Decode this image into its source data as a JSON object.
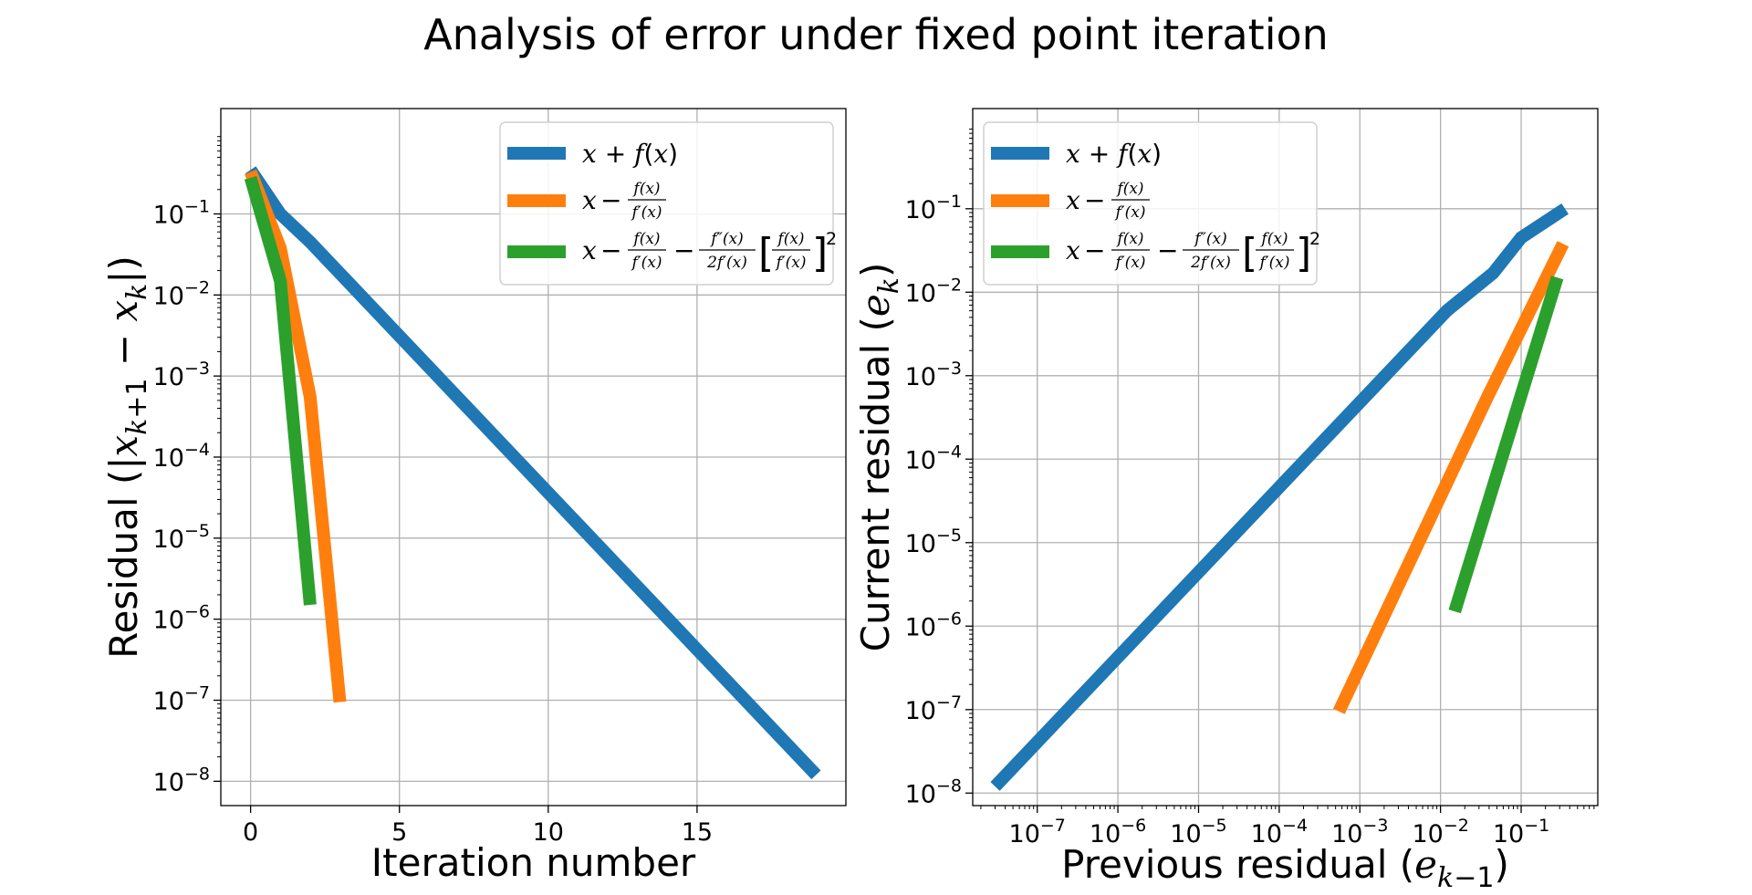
{
  "figure": {
    "title": "Analysis of error under fixed point iteration"
  },
  "colors": {
    "blue": "#1f77b4",
    "orange": "#ff7f0e",
    "green": "#2ca02c",
    "grid": "#b0b0b0"
  },
  "legend_labels": {
    "fx": "x + f(x)",
    "newton": "x − f(x)/f′(x)",
    "halley": "x − f(x)/f′(x) − f″(x)/(2f′(x)) [f(x)/f′(x)]^2"
  },
  "chart_data": [
    {
      "type": "line",
      "xlabel": "Iteration number",
      "ylabel": "Residual (|x_{k+1} − x_k|)",
      "xlim": [
        -1,
        20
      ],
      "ylog": true,
      "ylim_exp": [
        -8.3,
        0.3
      ],
      "grid": true,
      "legend_position": "top-right",
      "xticks": [
        0,
        5,
        10,
        15
      ],
      "yticks_exp": [
        -8,
        -7,
        -6,
        -5,
        -4,
        -3,
        -2,
        -1
      ],
      "series": [
        {
          "key": "fx",
          "color": "#1f77b4",
          "x": [
            0,
            1,
            2,
            19
          ],
          "y": [
            0.35,
            0.1,
            0.045,
            1.2e-08
          ]
        },
        {
          "key": "newton",
          "color": "#ff7f0e",
          "x": [
            0,
            1,
            2,
            3
          ],
          "y": [
            0.33,
            0.038,
            0.00055,
            9.5e-08
          ]
        },
        {
          "key": "halley",
          "color": "#2ca02c",
          "x": [
            0,
            1,
            2
          ],
          "y": [
            0.28,
            0.015,
            1.5e-06
          ]
        }
      ]
    },
    {
      "type": "line",
      "xlabel": "Previous residual (e_{k−1})",
      "ylabel": "Current residual (e_k)",
      "xlog": true,
      "ylog": true,
      "xlim_exp": [
        -7.8,
        -0.05
      ],
      "ylim_exp": [
        -8.15,
        0.2
      ],
      "grid": true,
      "legend_position": "top-left",
      "xticks_exp": [
        -7,
        -6,
        -5,
        -4,
        -3,
        -2,
        -1
      ],
      "yticks_exp": [
        -8,
        -7,
        -6,
        -5,
        -4,
        -3,
        -2,
        -1
      ],
      "series": [
        {
          "key": "fx",
          "color": "#1f77b4",
          "x": [
            3e-08,
            0.012,
            0.045,
            0.1,
            0.35
          ],
          "y": [
            1.2e-08,
            0.006,
            0.017,
            0.045,
            0.1
          ]
        },
        {
          "key": "newton",
          "color": "#ff7f0e",
          "x": [
            0.00055,
            0.038,
            0.33
          ],
          "y": [
            9.5e-08,
            0.00055,
            0.038
          ]
        },
        {
          "key": "halley",
          "color": "#2ca02c",
          "x": [
            0.015,
            0.28
          ],
          "y": [
            1.5e-06,
            0.015
          ]
        }
      ]
    }
  ]
}
